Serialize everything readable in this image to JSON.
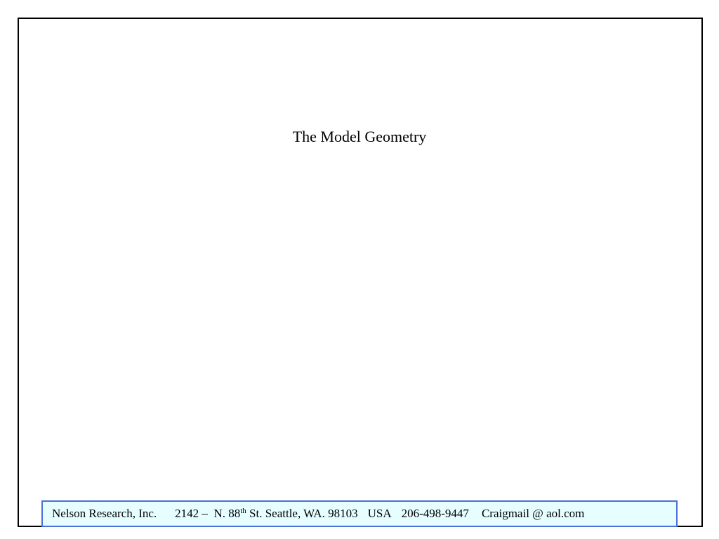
{
  "slide": {
    "title": "The Model Geometry",
    "footer": {
      "company": "Nelson Research, Inc.",
      "address_start": "2142 –  N. 88",
      "address_sup": "th",
      "address_end": "St. Seattle, WA. 98103",
      "country": "USA",
      "phone": "206-498-9447",
      "email": "Craigmail @ aol.com"
    }
  }
}
